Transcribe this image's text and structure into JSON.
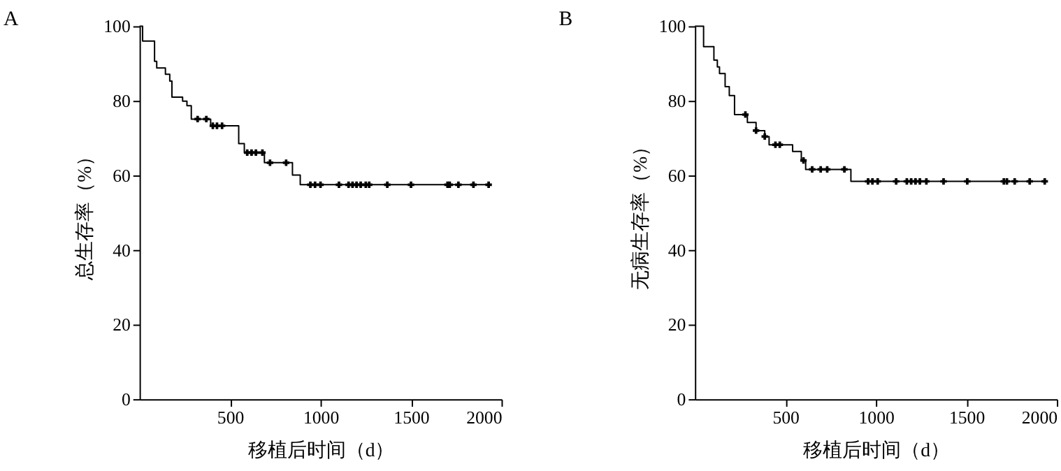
{
  "chart_data": [
    {
      "type": "step",
      "title": "A",
      "xlabel": "移植后时间（d）",
      "ylabel": "总生存率（%）",
      "xlim": [
        0,
        2000
      ],
      "xticks": [
        500,
        1000,
        1500,
        2000
      ],
      "ylim": [
        0,
        100
      ],
      "yticks": [
        0,
        20,
        40,
        60,
        80,
        100
      ],
      "grid": false,
      "legend": false,
      "line_style": "solid",
      "series": [
        {
          "color": "#000000",
          "x": [
            0,
            17,
            83,
            95,
            143,
            167,
            179,
            238,
            262,
            286,
            393,
            548,
            579,
            690,
            845,
            888,
            1929
          ],
          "values": [
            100,
            96,
            90.6,
            88.8,
            87.1,
            85.3,
            81,
            79.9,
            78.7,
            75.1,
            73.3,
            68.5,
            66.1,
            63.4,
            60.1,
            57.5,
            57.5
          ]
        },
        {
          "type": "scatter",
          "marker": "cross",
          "color": "#000000",
          "x": [
            321,
            369,
            405,
            428,
            456,
            595,
            619,
            643,
            679,
            721,
            810,
            944,
            970,
            1000,
            1102,
            1155,
            1177,
            1199,
            1222,
            1250,
            1269,
            1369,
            1500,
            1702,
            1714,
            1762,
            1845,
            1929
          ],
          "values": [
            75.1,
            75.1,
            73.3,
            73.3,
            73.3,
            66.1,
            66.1,
            66.1,
            66.1,
            63.4,
            63.4,
            57.5,
            57.5,
            57.5,
            57.5,
            57.5,
            57.5,
            57.5,
            57.5,
            57.5,
            57.5,
            57.5,
            57.5,
            57.5,
            57.5,
            57.5,
            57.5,
            57.5
          ]
        }
      ]
    },
    {
      "type": "step",
      "title": "B",
      "xlabel": "移植后时间（d）",
      "ylabel": "无病生存率（%）",
      "xlim": [
        0,
        2000
      ],
      "xticks": [
        500,
        1000,
        1500,
        2000
      ],
      "ylim": [
        0,
        100
      ],
      "yticks": [
        0,
        20,
        40,
        60,
        80,
        100
      ],
      "grid": false,
      "legend": false,
      "line_style": "solid",
      "series": [
        {
          "color": "#000000",
          "x": [
            0,
            48,
            105,
            124,
            136,
            167,
            190,
            219,
            290,
            338,
            386,
            410,
            540,
            588,
            612,
            862,
            1933
          ],
          "values": [
            100,
            94.5,
            90.9,
            89.1,
            87.3,
            83.8,
            81.4,
            76.3,
            74.2,
            72,
            70.4,
            68.2,
            66.4,
            64,
            61.6,
            58.4,
            58.4
          ]
        },
        {
          "type": "scatter",
          "marker": "cross",
          "color": "#000000",
          "x": [
            279,
            338,
            386,
            445,
            469,
            600,
            648,
            695,
            731,
            826,
            957,
            981,
            1010,
            1112,
            1171,
            1195,
            1219,
            1243,
            1279,
            1374,
            1505,
            1707,
            1724,
            1767,
            1850,
            1933
          ],
          "values": [
            76.3,
            72,
            70.4,
            68.2,
            68.2,
            64,
            61.6,
            61.6,
            61.6,
            61.6,
            58.4,
            58.4,
            58.4,
            58.4,
            58.4,
            58.4,
            58.4,
            58.4,
            58.4,
            58.4,
            58.4,
            58.4,
            58.4,
            58.4,
            58.4,
            58.4
          ]
        }
      ]
    }
  ]
}
